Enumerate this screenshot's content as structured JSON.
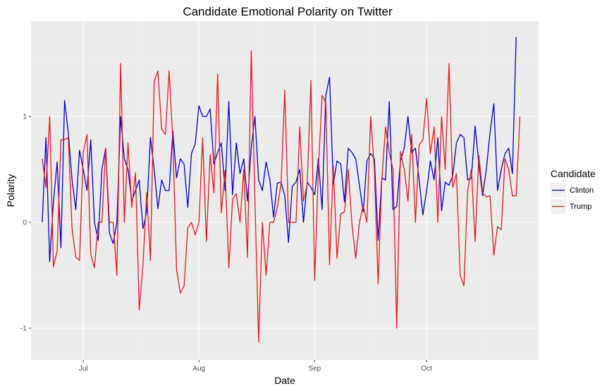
{
  "chart_data": {
    "type": "line",
    "title": "Candidate Emotional Polarity on Twitter",
    "xlabel": "Date",
    "ylabel": "Polarity",
    "x_ticks": [
      {
        "label": "Jul",
        "day": 11
      },
      {
        "label": "Aug",
        "day": 42
      },
      {
        "label": "Sep",
        "day": 73
      },
      {
        "label": "Oct",
        "day": 103
      }
    ],
    "y_ticks": [
      -1,
      0,
      1
    ],
    "xlim_days": [
      -3,
      133
    ],
    "ylim": [
      -1.3,
      1.9
    ],
    "grid": true,
    "legend": {
      "title": "Candidate",
      "position": "right",
      "entries": [
        {
          "name": "Clinton",
          "color": "#0000cc"
        },
        {
          "name": "Trump",
          "color": "#e31a1c"
        }
      ]
    },
    "series": [
      {
        "name": "Clinton",
        "color": "#0000cc",
        "start_day": 0,
        "values": [
          0.0,
          0.8,
          -0.37,
          0.2,
          0.57,
          -0.24,
          1.15,
          0.85,
          0.4,
          0.12,
          0.68,
          0.5,
          0.3,
          0.78,
          0.0,
          -0.17,
          0.5,
          0.7,
          -0.1,
          -0.2,
          0.0,
          1.0,
          0.6,
          0.5,
          0.2,
          0.3,
          0.4,
          -0.06,
          0.1,
          0.8,
          0.5,
          0.13,
          0.4,
          0.3,
          0.3,
          0.86,
          0.42,
          0.6,
          0.55,
          0.14,
          0.65,
          0.74,
          1.1,
          1.0,
          1.0,
          1.07,
          0.55,
          0.66,
          0.75,
          0.3,
          1.14,
          0.26,
          0.75,
          0.46,
          0.6,
          0.2,
          0.7,
          1.0,
          0.4,
          0.3,
          0.57,
          0.4,
          0.05,
          0.37,
          0.38,
          0.25,
          -0.19,
          0.34,
          0.38,
          0.5,
          0.0,
          0.38,
          0.33,
          0.26,
          0.6,
          0.12,
          1.2,
          1.37,
          0.36,
          0.58,
          0.55,
          0.19,
          0.7,
          0.66,
          0.6,
          0.35,
          0.1,
          0.58,
          0.65,
          0.6,
          -0.17,
          0.42,
          0.4,
          1.14,
          0.12,
          0.15,
          0.58,
          0.7,
          1.0,
          0.66,
          0.7,
          0.4,
          0.07,
          0.3,
          0.58,
          0.4,
          0.8,
          0.11,
          0.38,
          0.35,
          0.44,
          0.75,
          0.83,
          0.8,
          0.4,
          0.42,
          0.91,
          0.55,
          0.25,
          0.5,
          0.85,
          1.12,
          0.3,
          0.5,
          0.65,
          0.7,
          0.46,
          1.75
        ]
      },
      {
        "name": "Trump",
        "color": "#e31a1c",
        "start_day": 0,
        "values": [
          0.6,
          0.33,
          1.0,
          -0.42,
          -0.27,
          0.78,
          0.78,
          0.8,
          -0.06,
          -0.33,
          -0.36,
          0.66,
          0.83,
          -0.3,
          -0.43,
          0.0,
          0.0,
          0.7,
          0.0,
          0.0,
          -0.5,
          1.5,
          0.0,
          0.75,
          0.14,
          0.47,
          -0.83,
          -0.4,
          0.28,
          -0.36,
          1.33,
          1.43,
          0.88,
          0.83,
          1.43,
          0.77,
          -0.45,
          -0.67,
          -0.6,
          -0.05,
          0.0,
          -0.12,
          0.0,
          0.8,
          -0.18,
          0.64,
          0.28,
          1.4,
          0.09,
          0.49,
          -0.43,
          0.22,
          0.27,
          0.0,
          0.5,
          -0.33,
          1.62,
          0.22,
          -1.13,
          0.0,
          -0.5,
          0.0,
          0.0,
          0.14,
          0.36,
          1.25,
          0.0,
          0.0,
          0.0,
          0.9,
          0.2,
          0.36,
          1.34,
          -0.55,
          0.5,
          1.2,
          1.13,
          -0.4,
          0.53,
          -0.34,
          0.08,
          0.1,
          0.5,
          -0.02,
          -0.34,
          0.0,
          0.16,
          0.0,
          1.0,
          0.5,
          -0.58,
          0.4,
          0.9,
          0.66,
          0.5,
          -1.0,
          0.67,
          0.5,
          0.2,
          0.83,
          0.0,
          0.73,
          0.78,
          1.17,
          0.65,
          0.9,
          0.0,
          1.0,
          0.5,
          1.5,
          0.33,
          0.46,
          -0.5,
          -0.6,
          0.3,
          0.5,
          -0.18,
          0.63,
          0.28,
          0.24,
          0.25,
          -0.31,
          -0.04,
          -0.07,
          0.6,
          0.5,
          0.25,
          0.25,
          1.0
        ]
      }
    ]
  }
}
